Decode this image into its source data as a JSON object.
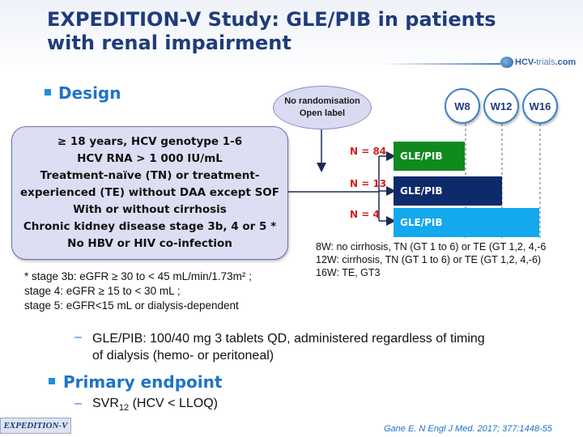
{
  "title_line1": "EXPEDITION-V Study: GLE/PIB in patients",
  "title_line2": "with renal impairment",
  "logo": {
    "main": "HCV-",
    "accent": "trials",
    "suffix": ".com"
  },
  "design_heading": "Design",
  "randomisation": {
    "line1": "No randomisation",
    "line2": "Open label"
  },
  "weeks": [
    "W8",
    "W12",
    "W16"
  ],
  "criteria": [
    "≥ 18 years, HCV genotype 1-6",
    "HCV RNA > 1 000 IU/mL",
    "Treatment-naïve (TN) or treatment-",
    "experienced (TE) without DAA except SOF",
    "With or without cirrhosis",
    "Chronic kidney disease stage 3b, 4 or 5 *",
    "No HBV or HIV co-infection"
  ],
  "arms": [
    {
      "n": "N = 84",
      "label": "GLE/PIB",
      "color": "#108a1e"
    },
    {
      "n": "N = 13",
      "label": "GLE/PIB",
      "color": "#0d2a6b"
    },
    {
      "n": "N = 4",
      "label": "GLE/PIB",
      "color": "#14a8ec"
    }
  ],
  "arm_notes": [
    "8W: no cirrhosis, TN (GT 1 to 6) or TE (GT 1,2, 4,-6",
    "12W: cirrhosis, TN (GT 1 to 6) or TE (GT 1,2, 4,-6)",
    "16W: TE, GT3"
  ],
  "footnotes": [
    "* stage 3b: eGFR ≥ 30 to < 45 mL/min/1.73m² ;",
    "stage 4: eGFR ≥ 15 to < 30 mL ;",
    "stage 5: eGFR<15 mL or dialysis-dependent"
  ],
  "dose_line1": "GLE/PIB: 100/40 mg 3 tablets QD, administered regardless of timing",
  "dose_line2": "of dialysis (hemo- or peritoneal)",
  "primary_heading": "Primary endpoint",
  "endpoint": {
    "pre": "SVR",
    "sub": "12",
    "post": " (HCV < LLOQ)"
  },
  "footer_tag": "EXPEDITION-V",
  "citation": "Gane E. N Engl J Med. 2017; 377:1448-55"
}
